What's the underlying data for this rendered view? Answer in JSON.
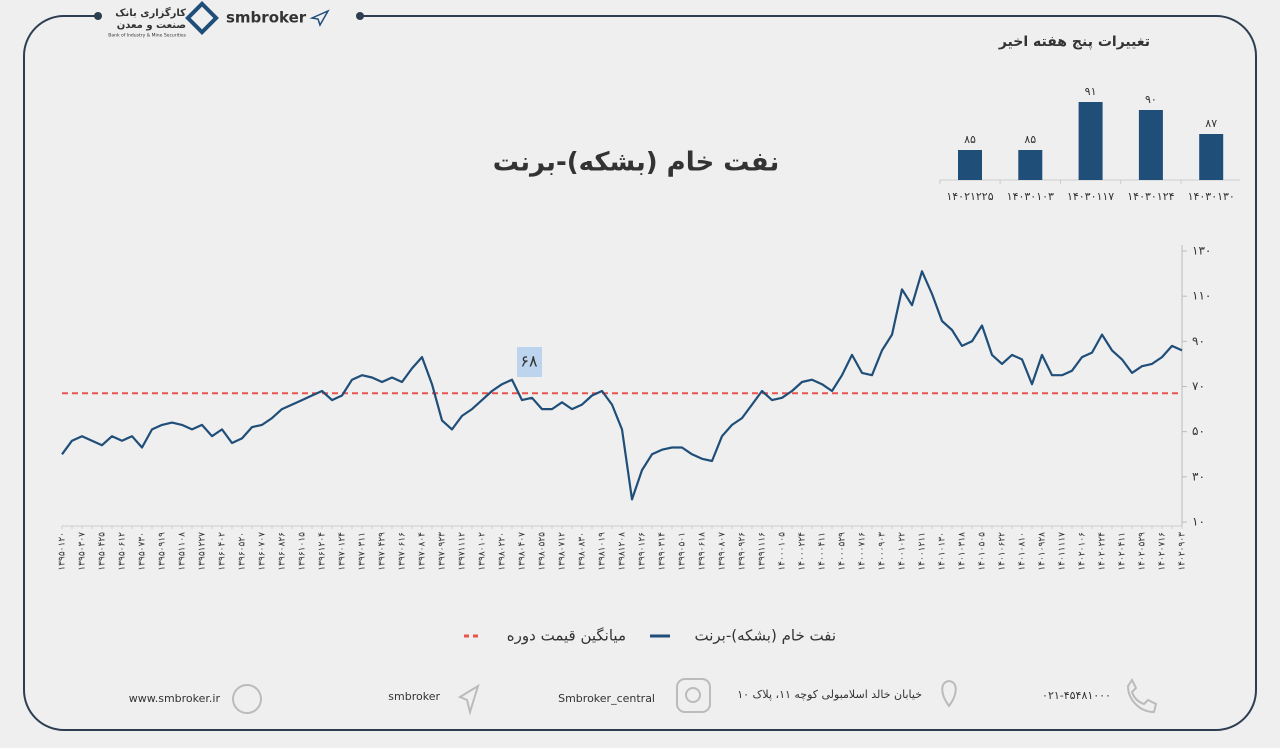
{
  "header": {
    "brand": "smbroker",
    "logo_line1": "کارگزاری بانک",
    "logo_line2": "صنعت و معدن",
    "logo_sub": "Bank of Industry & Mine Securities"
  },
  "chart_data": [
    {
      "type": "line",
      "title": "نفت خام (بشکه)-برنت",
      "annotation": "۶۸",
      "categories": [
        "۱۳۹۵۰۱۲۰",
        null,
        "۱۳۹۵۰۳۰۷",
        null,
        "۱۳۹۵۰۴۲۵",
        null,
        "۱۳۹۵۰۶۱۲",
        null,
        "۱۳۹۵۰۷۳۰",
        null,
        "۱۳۹۵۰۹۱۹",
        null,
        "۱۳۹۵۱۱۰۸",
        null,
        "۱۳۹۵۱۲۲۷",
        null,
        "۱۳۹۶۰۴۰۲",
        null,
        "۱۳۹۶۰۵۲۰",
        null,
        "۱۳۹۶۰۷۰۷",
        null,
        "۱۳۹۶۰۸۲۶",
        null,
        "۱۳۹۶۱۰۱۵",
        null,
        "۱۳۹۶۱۲۰۴",
        null,
        "۱۳۹۷۰۱۲۴",
        null,
        "۱۳۹۷۰۳۱۱",
        null,
        "۱۳۹۷۰۴۲۹",
        null,
        "۱۳۹۷۰۶۱۶",
        null,
        "۱۳۹۷۰۸۰۴",
        null,
        "۱۳۹۷۰۹۲۳",
        null,
        "۱۳۹۷۱۱۱۲",
        null,
        "۱۳۹۸۰۱۰۲",
        null,
        "۱۳۹۸۰۲۲۰",
        null,
        "۱۳۹۸۰۴۰۷",
        null,
        "۱۳۹۸۰۵۲۵",
        null,
        "۱۳۹۸۰۷۱۲",
        null,
        "۱۳۹۸۰۸۳۰",
        null,
        "۱۳۹۸۱۰۱۹",
        null,
        "۱۳۹۸۱۲۰۸",
        null,
        "۱۳۹۹۰۱۲۶",
        null,
        "۱۳۹۹۰۳۱۴",
        null,
        "۱۳۹۹۰۵۰۱",
        null,
        "۱۳۹۹۰۶۱۸",
        null,
        "۱۳۹۹۰۸۰۷",
        null,
        "۱۳۹۹۰۹۲۶",
        null,
        "۱۳۹۹۱۱۱۶",
        null,
        "۱۴۰۰۰۱۰۵",
        null,
        "۱۴۰۰۰۲۲۴",
        null,
        "۱۴۰۰۰۴۱۱",
        null,
        "۱۴۰۰۰۵۲۹",
        null,
        "۱۴۰۰۰۷۱۶",
        null,
        "۱۴۰۰۰۹۰۳",
        null,
        "۱۴۰۰۱۰۲۲",
        null,
        "۱۴۰۰۱۲۱۱",
        null,
        "۱۴۰۱۰۱۳۰",
        null,
        "۱۴۰۱۰۳۱۸",
        null,
        "۱۴۰۱۰۵۰۵",
        null,
        "۱۴۰۱۰۶۲۲",
        null,
        "۱۴۰۱۰۸۱۰",
        null,
        "۱۴۰۱۰۹۲۸",
        null,
        "۱۴۰۱۱۱۱۷",
        null,
        "۱۴۰۲۰۱۰۶",
        null,
        "۱۴۰۲۰۲۲۴",
        null,
        "۱۴۰۲۰۴۱۱",
        null,
        "۱۴۰۲۰۵۲۹",
        null,
        "۱۴۰۲۰۷۱۶",
        null,
        "۱۴۰۲۰۹۰۳"
      ],
      "series": [
        {
          "name": "نفت خام (بشکه)-برنت",
          "color": "#1f4e79",
          "values": [
            40,
            46,
            48,
            46,
            44,
            48,
            46,
            48,
            43,
            51,
            53,
            54,
            53,
            51,
            53,
            48,
            51,
            45,
            47,
            52,
            53,
            56,
            60,
            62,
            64,
            66,
            68,
            64,
            66,
            73,
            75,
            74,
            72,
            74,
            72,
            78,
            83,
            71,
            55,
            51,
            57,
            60,
            64,
            68,
            71,
            73,
            64,
            65,
            60,
            60,
            63,
            60,
            62,
            66,
            68,
            62,
            51,
            20,
            33,
            40,
            42,
            43,
            43,
            40,
            38,
            37,
            48,
            53,
            56,
            62,
            68,
            64,
            65,
            68,
            72,
            73,
            71,
            68,
            75,
            84,
            76,
            75,
            86,
            93,
            113,
            106,
            121,
            111,
            99,
            95,
            88,
            90,
            97,
            84,
            80,
            84,
            82,
            71,
            84,
            75,
            75,
            77,
            83,
            85,
            93,
            86,
            82,
            76,
            79,
            80,
            83,
            88,
            86
          ]
        }
      ],
      "reference_lines": [
        {
          "name": "میانگین قیمت دوره",
          "color": "#e8554e",
          "value": 67
        }
      ],
      "ylim": [
        10,
        130
      ],
      "yticks": [
        {
          "value": 10,
          "label": "۱۰"
        },
        {
          "value": 30,
          "label": "۳۰"
        },
        {
          "value": 50,
          "label": "۵۰"
        },
        {
          "value": 70,
          "label": "۷۰"
        },
        {
          "value": 90,
          "label": "۹۰"
        },
        {
          "value": 110,
          "label": "۱۱۰"
        },
        {
          "value": 130,
          "label": "۱۳۰"
        }
      ]
    },
    {
      "type": "bar",
      "title": "تغییرات پنج هفته اخیر",
      "color": "#1f4e79",
      "categories": [
        "۱۴۰۲۱۲۲۵",
        "۱۴۰۳۰۱۰۳",
        "۱۴۰۳۰۱۱۷",
        "۱۴۰۳۰۱۲۴",
        "۱۴۰۳۰۱۳۰"
      ],
      "values": [
        85,
        85,
        91,
        90,
        87
      ],
      "value_labels": [
        "۸۵",
        "۸۵",
        "۹۱",
        "۹۰",
        "۸۷"
      ]
    }
  ],
  "footer": {
    "website": "www.smbroker.ir",
    "telegram": "smbroker",
    "instagram": "Smbroker_central",
    "address": "خیابان خالد اسلامبولی کوچه ۱۱، پلاک ۱۰",
    "phone": "۰۲۱-۴۵۴۸۱۰۰۰"
  }
}
